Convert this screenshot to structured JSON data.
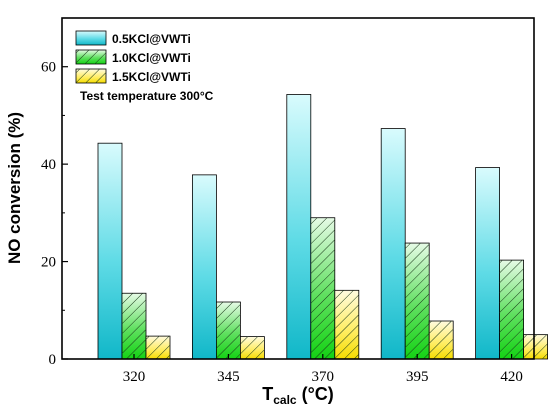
{
  "chart_data": {
    "type": "bar",
    "categories": [
      "320",
      "345",
      "370",
      "395",
      "420"
    ],
    "series": [
      {
        "name": "0.5KCl@VWTi",
        "values": [
          44.3,
          37.8,
          54.3,
          47.3,
          39.3
        ],
        "color": "#2ec8d6",
        "pattern": "gradient"
      },
      {
        "name": "1.0KCl@VWTi",
        "values": [
          13.5,
          11.7,
          29.0,
          23.8,
          20.3
        ],
        "color": "#2ee02e",
        "pattern": "hatch"
      },
      {
        "name": "1.5KCl@VWTi",
        "values": [
          4.7,
          4.6,
          14.1,
          7.8,
          5.0
        ],
        "color": "#ffe600",
        "pattern": "hatch"
      }
    ],
    "ylabel": "NO conversion (%)",
    "xlabel_main": "T",
    "xlabel_sub": "calc",
    "xlabel_unit": " (°C)",
    "ylim": [
      0,
      70
    ],
    "yticks": [
      0,
      20,
      40,
      60
    ],
    "annotation": "Test temperature 300°C",
    "legend_position": "top-left",
    "grid": false
  }
}
